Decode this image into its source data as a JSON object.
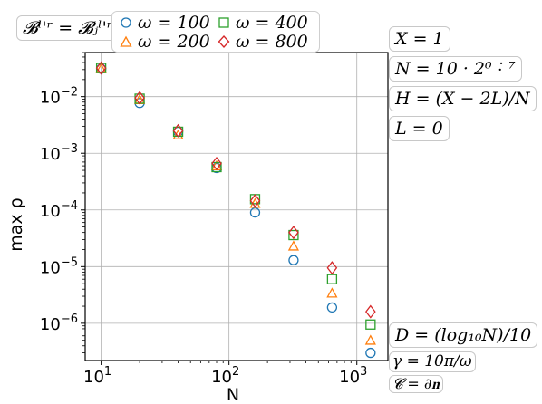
{
  "annotations": {
    "top_left": "𝓑ˡ'ʳ = 𝓑ⱼˡ'ʳ",
    "x": "X = 1",
    "n": "N = 10 · 2⁰ ˸ ⁷",
    "h": "H = (X − 2L)/N",
    "l": "L = 0",
    "d": "D = (log₁₀N)/10",
    "gamma": "γ = 10π/ω",
    "c": "𝓒 = ∂𝐧"
  },
  "legend": [
    {
      "label": "ω = 100",
      "color": "#1f77b4",
      "marker": "circle"
    },
    {
      "label": "ω = 200",
      "color": "#ff7f0e",
      "marker": "triangle"
    },
    {
      "label": "ω = 400",
      "color": "#2ca02c",
      "marker": "square"
    },
    {
      "label": "ω = 800",
      "color": "#d62728",
      "marker": "diamond"
    }
  ],
  "chart_data": {
    "type": "scatter",
    "xlabel": "N",
    "ylabel": "max ρ",
    "xscale": "log",
    "yscale": "log",
    "xlim": [
      7.5,
      1750
    ],
    "ylim": [
      2.2e-07,
      0.06
    ],
    "xticks": [
      {
        "value": 10,
        "base": "10",
        "exp": "1"
      },
      {
        "value": 100,
        "base": "10",
        "exp": "2"
      },
      {
        "value": 1000,
        "base": "10",
        "exp": "3"
      }
    ],
    "yticks": [
      {
        "value": 1e-06,
        "base": "10",
        "exp": "−6"
      },
      {
        "value": 1e-05,
        "base": "10",
        "exp": "−5"
      },
      {
        "value": 0.0001,
        "base": "10",
        "exp": "−4"
      },
      {
        "value": 0.001,
        "base": "10",
        "exp": "−3"
      },
      {
        "value": 0.01,
        "base": "10",
        "exp": "−2"
      }
    ],
    "grid": true,
    "x": [
      10,
      20,
      40,
      80,
      160,
      320,
      640,
      1280
    ],
    "series": [
      {
        "name": "ω = 100",
        "color": "#1f77b4",
        "marker": "circle",
        "values": [
          0.031,
          0.0077,
          0.0024,
          0.00055,
          9e-05,
          1.3e-05,
          1.9e-06,
          3e-07
        ]
      },
      {
        "name": "ω = 200",
        "color": "#ff7f0e",
        "marker": "triangle",
        "values": [
          0.031,
          0.0088,
          0.0021,
          0.0006,
          0.00013,
          2.3e-05,
          3.4e-06,
          5e-07
        ]
      },
      {
        "name": "ω = 400",
        "color": "#2ca02c",
        "marker": "square",
        "values": [
          0.032,
          0.0092,
          0.0024,
          0.00057,
          0.000155,
          3.6e-05,
          6e-06,
          9.5e-07
        ]
      },
      {
        "name": "ω = 800",
        "color": "#d62728",
        "marker": "diamond",
        "values": [
          0.032,
          0.0095,
          0.0025,
          0.00066,
          0.000145,
          4e-05,
          9.5e-06,
          1.6e-06
        ]
      }
    ]
  }
}
